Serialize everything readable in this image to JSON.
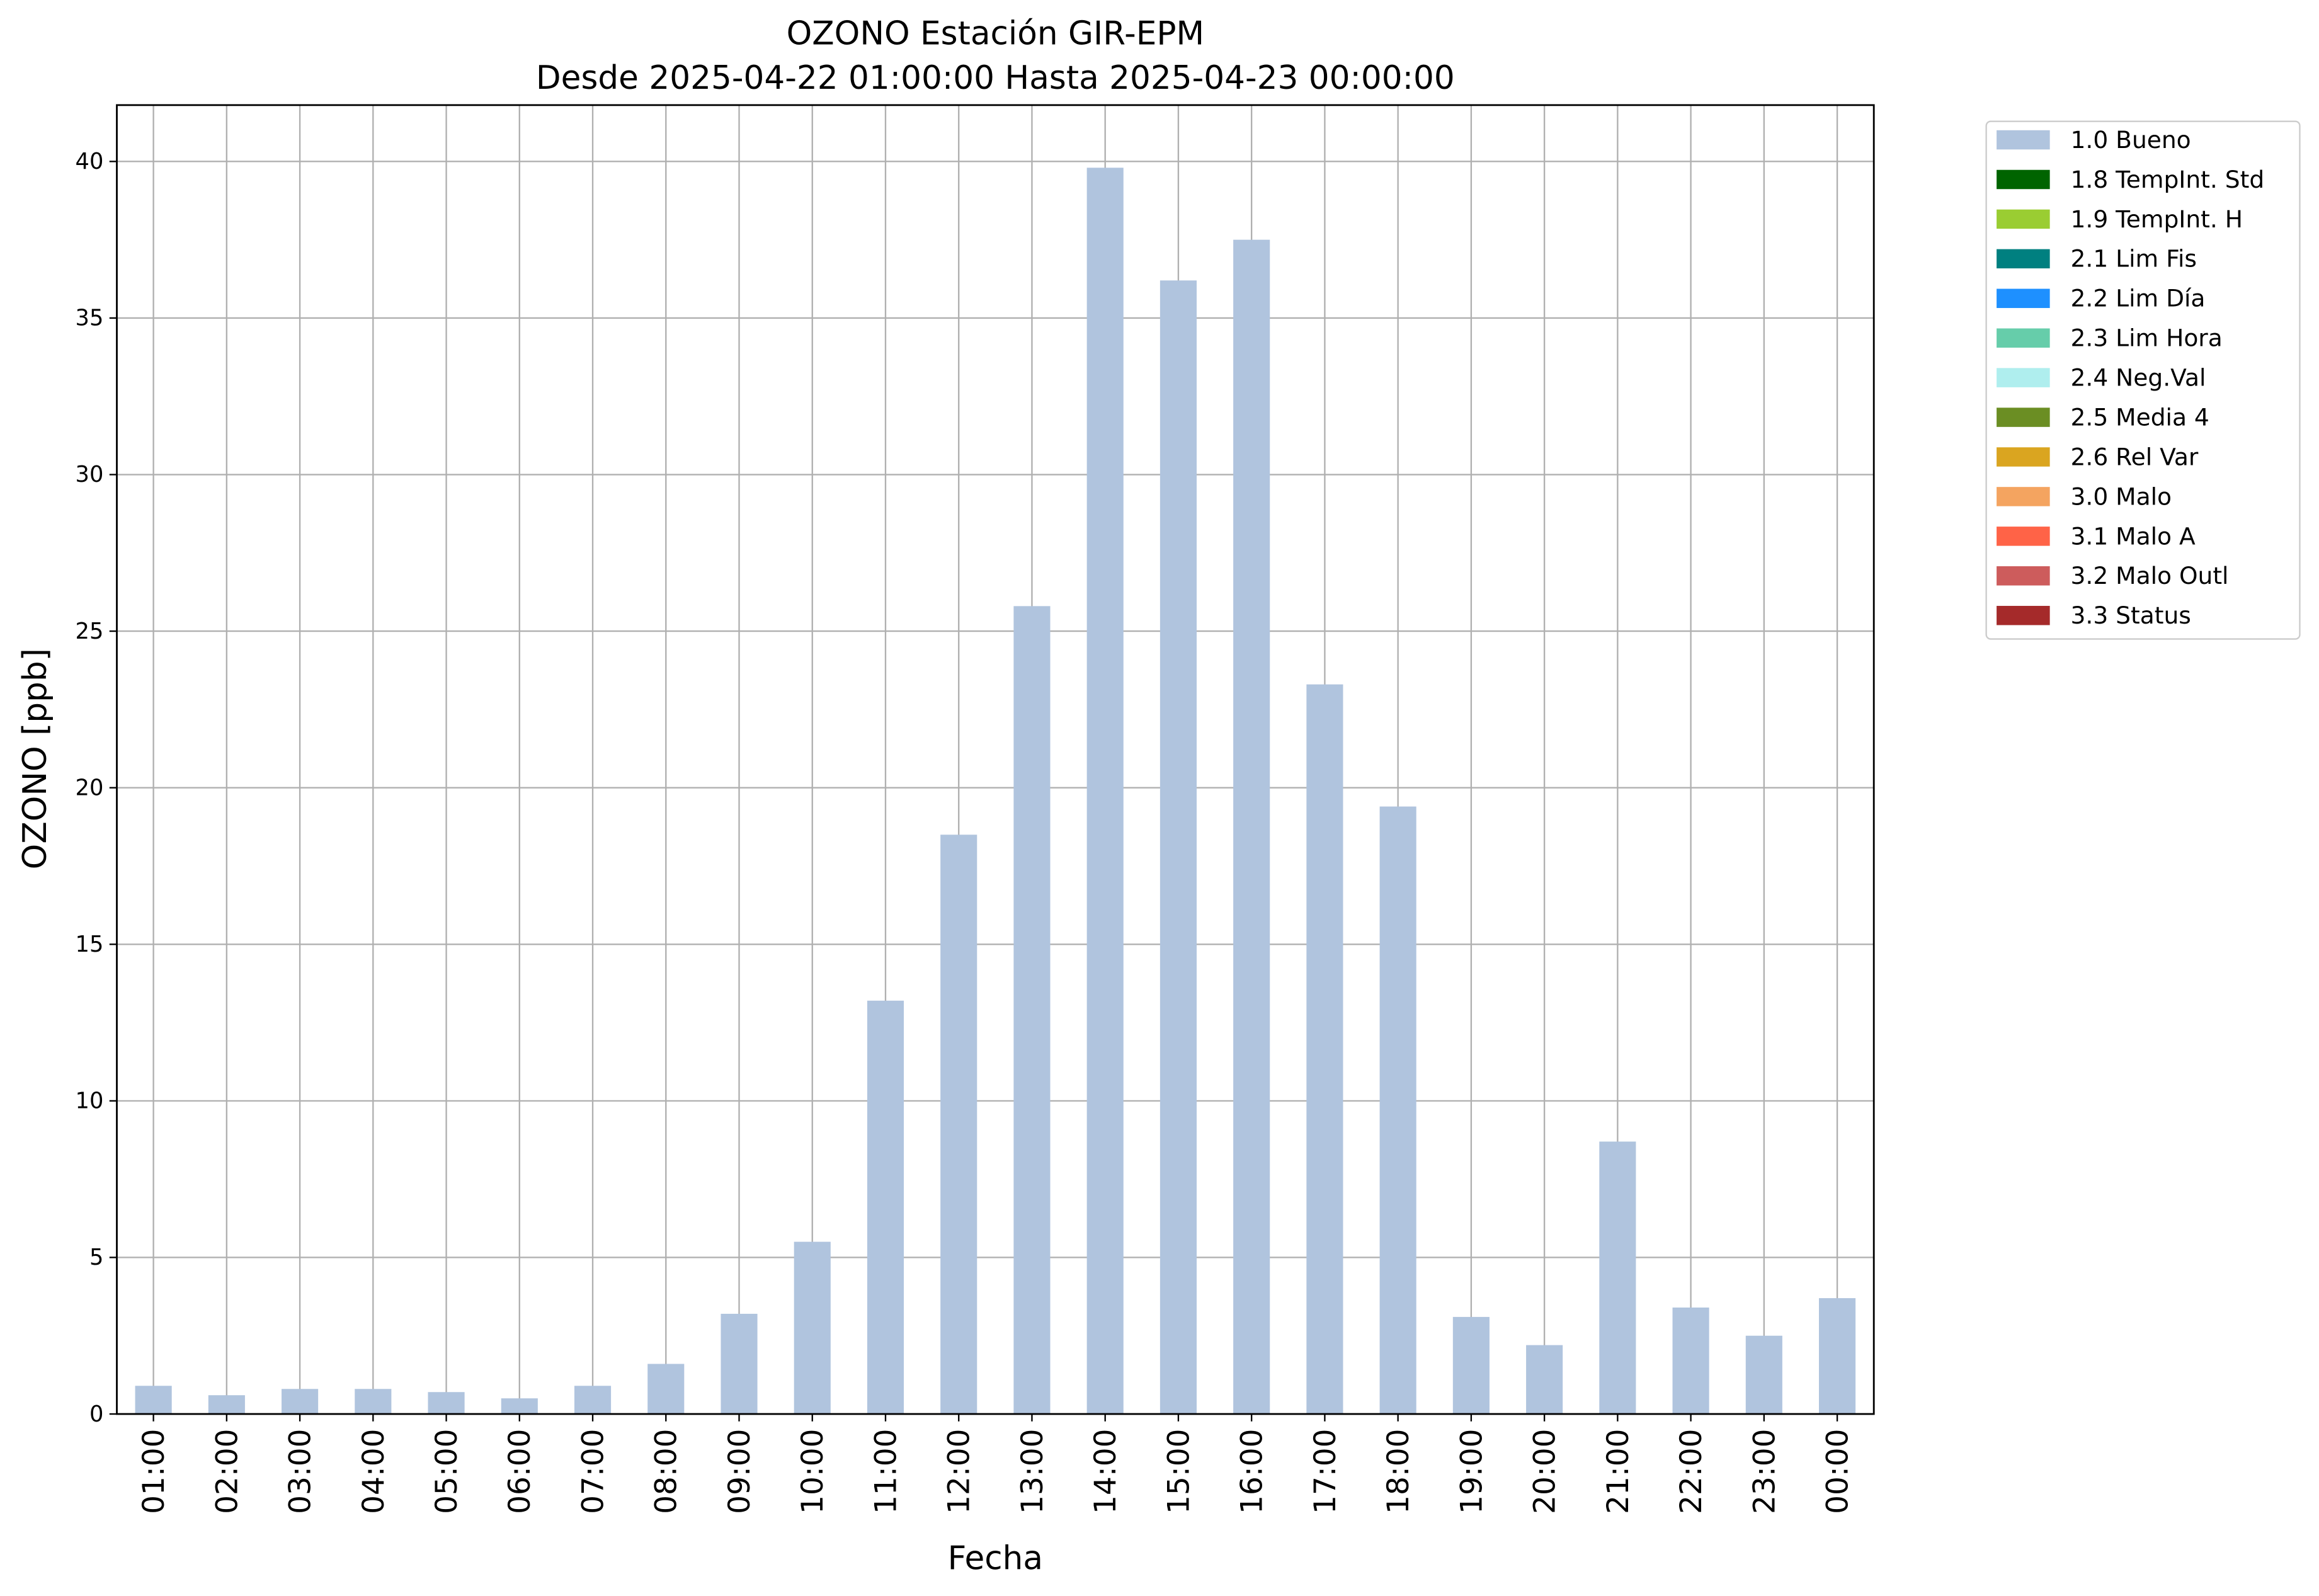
{
  "chart_data": {
    "type": "bar",
    "stacked": true,
    "title": "OZONO Estación GIR-EPM",
    "subtitle": "Desde 2025-04-22 01:00:00 Hasta 2025-04-23 00:00:00",
    "xlabel": "Fecha",
    "ylabel": "OZONO [ppb]",
    "categories": [
      "01:00",
      "02:00",
      "03:00",
      "04:00",
      "05:00",
      "06:00",
      "07:00",
      "08:00",
      "09:00",
      "10:00",
      "11:00",
      "12:00",
      "13:00",
      "14:00",
      "15:00",
      "16:00",
      "17:00",
      "18:00",
      "19:00",
      "20:00",
      "21:00",
      "22:00",
      "23:00",
      "00:00"
    ],
    "series": [
      {
        "name": "1.0 Bueno",
        "color": "#b0c4de",
        "values": [
          0.9,
          0.6,
          0.8,
          0.8,
          0.7,
          0.5,
          0.9,
          1.6,
          3.2,
          5.5,
          13.2,
          18.5,
          25.8,
          39.8,
          36.2,
          37.5,
          23.3,
          19.4,
          3.1,
          2.2,
          8.7,
          3.4,
          2.5,
          3.7
        ]
      },
      {
        "name": "1.8 TempInt. Std",
        "color": "#006400",
        "values": [
          0,
          0,
          0,
          0,
          0,
          0,
          0,
          0,
          0,
          0,
          0,
          0,
          0,
          0,
          0,
          0,
          0,
          0,
          0,
          0,
          0,
          0,
          0,
          0
        ]
      },
      {
        "name": "1.9 TempInt. H",
        "color": "#9acd32",
        "values": [
          0,
          0,
          0,
          0,
          0,
          0,
          0,
          0,
          0,
          0,
          0,
          0,
          0,
          0,
          0,
          0,
          0,
          0,
          0,
          0,
          0,
          0,
          0,
          0
        ]
      },
      {
        "name": "2.1 Lim Fis",
        "color": "#008080",
        "values": [
          0,
          0,
          0,
          0,
          0,
          0,
          0,
          0,
          0,
          0,
          0,
          0,
          0,
          0,
          0,
          0,
          0,
          0,
          0,
          0,
          0,
          0,
          0,
          0
        ]
      },
      {
        "name": "2.2 Lim Día",
        "color": "#1e90ff",
        "values": [
          0,
          0,
          0,
          0,
          0,
          0,
          0,
          0,
          0,
          0,
          0,
          0,
          0,
          0,
          0,
          0,
          0,
          0,
          0,
          0,
          0,
          0,
          0,
          0
        ]
      },
      {
        "name": "2.3 Lim Hora",
        "color": "#66cdaa",
        "values": [
          0,
          0,
          0,
          0,
          0,
          0,
          0,
          0,
          0,
          0,
          0,
          0,
          0,
          0,
          0,
          0,
          0,
          0,
          0,
          0,
          0,
          0,
          0,
          0
        ]
      },
      {
        "name": "2.4 Neg.Val",
        "color": "#afeeee",
        "values": [
          0,
          0,
          0,
          0,
          0,
          0,
          0,
          0,
          0,
          0,
          0,
          0,
          0,
          0,
          0,
          0,
          0,
          0,
          0,
          0,
          0,
          0,
          0,
          0
        ]
      },
      {
        "name": "2.5 Media 4",
        "color": "#6b8e23",
        "values": [
          0,
          0,
          0,
          0,
          0,
          0,
          0,
          0,
          0,
          0,
          0,
          0,
          0,
          0,
          0,
          0,
          0,
          0,
          0,
          0,
          0,
          0,
          0,
          0
        ]
      },
      {
        "name": "2.6 Rel Var",
        "color": "#daa520",
        "values": [
          0,
          0,
          0,
          0,
          0,
          0,
          0,
          0,
          0,
          0,
          0,
          0,
          0,
          0,
          0,
          0,
          0,
          0,
          0,
          0,
          0,
          0,
          0,
          0
        ]
      },
      {
        "name": "3.0 Malo",
        "color": "#f4a460",
        "values": [
          0,
          0,
          0,
          0,
          0,
          0,
          0,
          0,
          0,
          0,
          0,
          0,
          0,
          0,
          0,
          0,
          0,
          0,
          0,
          0,
          0,
          0,
          0,
          0
        ]
      },
      {
        "name": "3.1 Malo A",
        "color": "#ff6347",
        "values": [
          0,
          0,
          0,
          0,
          0,
          0,
          0,
          0,
          0,
          0,
          0,
          0,
          0,
          0,
          0,
          0,
          0,
          0,
          0,
          0,
          0,
          0,
          0,
          0
        ]
      },
      {
        "name": "3.2 Malo Outl",
        "color": "#cd5c5c",
        "values": [
          0,
          0,
          0,
          0,
          0,
          0,
          0,
          0,
          0,
          0,
          0,
          0,
          0,
          0,
          0,
          0,
          0,
          0,
          0,
          0,
          0,
          0,
          0,
          0
        ]
      },
      {
        "name": "3.3 Status",
        "color": "#a52a2a",
        "values": [
          0,
          0,
          0,
          0,
          0,
          0,
          0,
          0,
          0,
          0,
          0,
          0,
          0,
          0,
          0,
          0,
          0,
          0,
          0,
          0,
          0,
          0,
          0,
          0
        ]
      }
    ],
    "ylim": [
      0,
      41.8
    ],
    "yticks": [
      0,
      5,
      10,
      15,
      20,
      25,
      30,
      35,
      40
    ],
    "grid": true,
    "legend": "outside-upper-right"
  }
}
